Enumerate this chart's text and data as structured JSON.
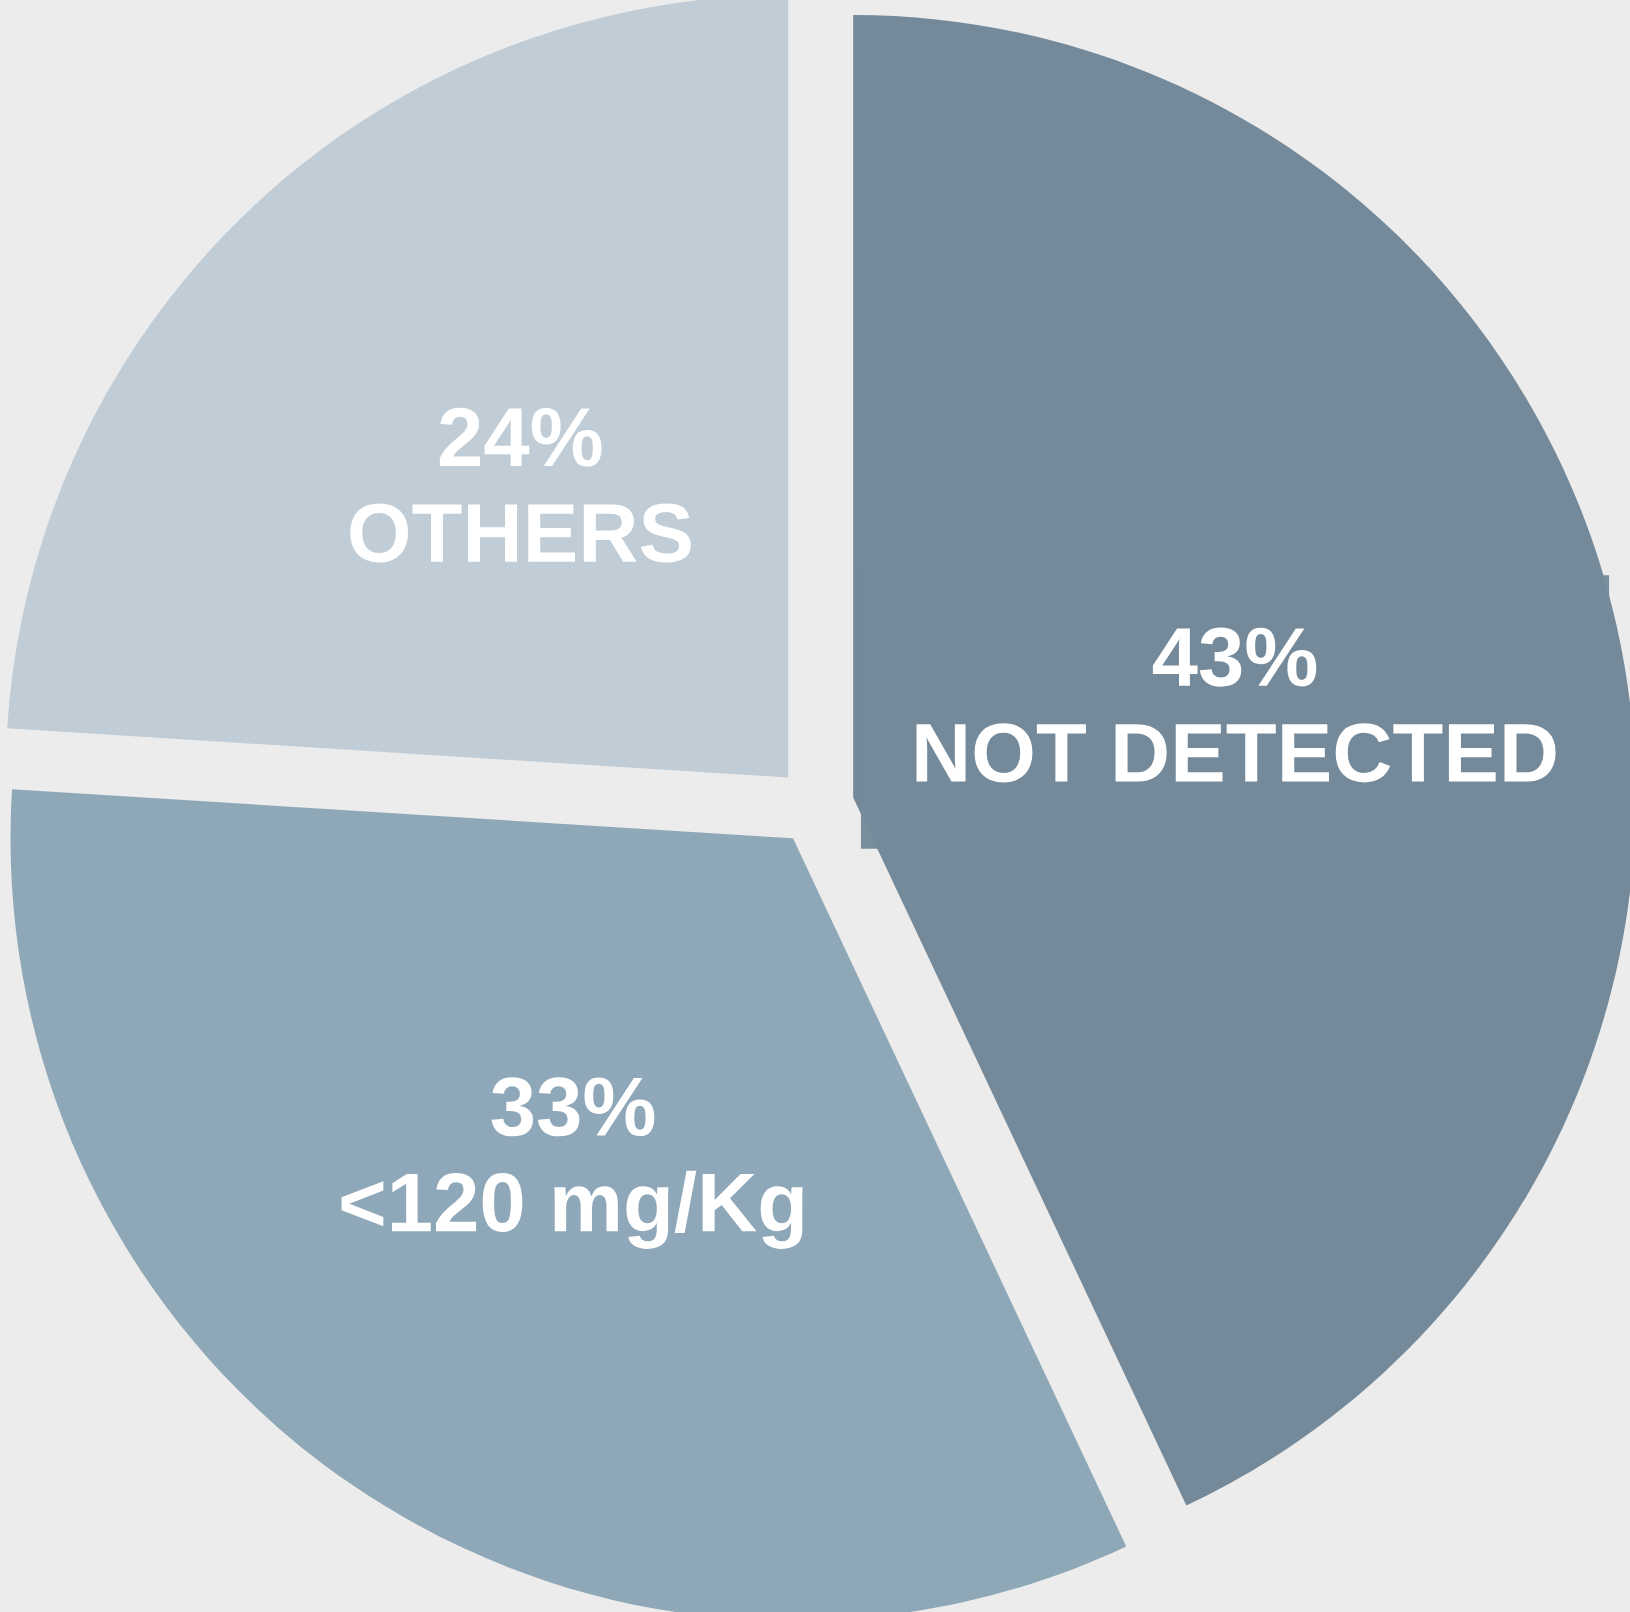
{
  "chart_data": {
    "type": "pie",
    "categories": [
      "NOT DETECTED",
      "<120 mg/Kg",
      "OTHERS"
    ],
    "values": [
      43,
      33,
      24
    ],
    "value_labels": [
      "43%",
      "33%",
      "24%"
    ],
    "colors": [
      "#748a9a",
      "#8fa8b8",
      "#c0ccd6"
    ]
  }
}
